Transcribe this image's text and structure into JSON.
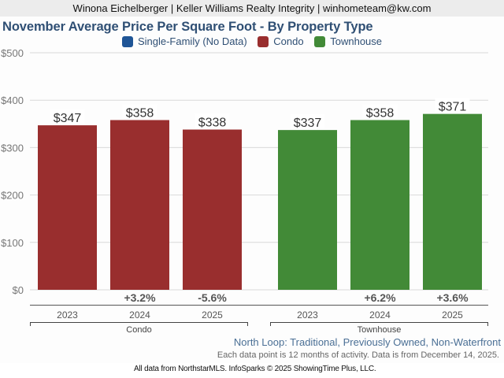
{
  "header": {
    "contact": "Winona Eichelberger | Keller Williams Realty Integrity | winhometeam@kw.com"
  },
  "legend": [
    {
      "label": "Single-Family (No Data)",
      "color": "#1f5596"
    },
    {
      "label": "Condo",
      "color": "#992e2e"
    },
    {
      "label": "Townhouse",
      "color": "#428a37"
    }
  ],
  "footer": {
    "area_note": "North Loop: Traditional, Previously Owned, Non-Waterfront",
    "data_note": "Each data point is 12 months of activity. Data is from December 14, 2025.",
    "credit": "All data from NorthstarMLS. InfoSparks © 2025 ShowingTime Plus, LLC."
  },
  "chart_data": {
    "type": "bar",
    "title": "November Average Price Per Square Foot - By Property Type",
    "xlabel": "",
    "ylabel": "",
    "ylim": [
      0,
      500
    ],
    "yticks": [
      0,
      100,
      200,
      300,
      400,
      500
    ],
    "ytick_labels": [
      "$0",
      "$100",
      "$200",
      "$300",
      "$400",
      "$500"
    ],
    "grid": true,
    "legend_position": "top-center",
    "groups": [
      {
        "name": "Condo",
        "color": "#992e2e",
        "categories": [
          "2023",
          "2024",
          "2025"
        ],
        "values": [
          347,
          358,
          338
        ],
        "value_labels": [
          "$347",
          "$358",
          "$338"
        ],
        "change_labels": [
          "",
          "+3.2%",
          "-5.6%"
        ]
      },
      {
        "name": "Townhouse",
        "color": "#428a37",
        "categories": [
          "2023",
          "2024",
          "2025"
        ],
        "values": [
          337,
          358,
          371
        ],
        "value_labels": [
          "$337",
          "$358",
          "$371"
        ],
        "change_labels": [
          "",
          "+6.2%",
          "+3.6%"
        ]
      }
    ],
    "missing_series": [
      "Single-Family (No Data)"
    ]
  }
}
